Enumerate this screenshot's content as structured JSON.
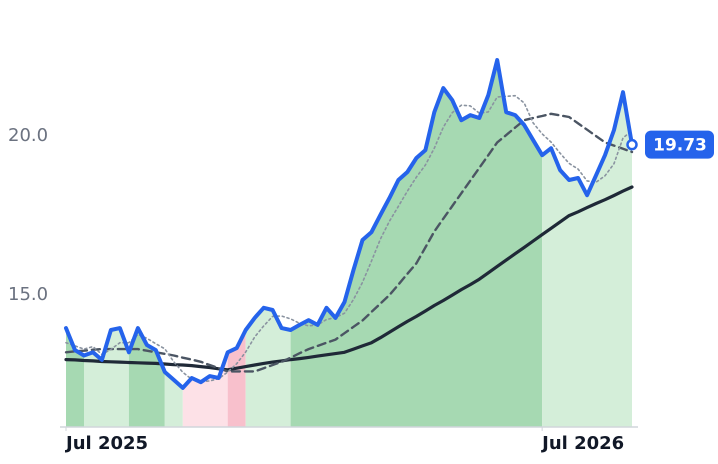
{
  "chart_data": {
    "type": "line",
    "categories": [
      "Jul 2025",
      null,
      null,
      null,
      null,
      null,
      null,
      null,
      null,
      null,
      null,
      null,
      null,
      null,
      null,
      null,
      null,
      null,
      null,
      null,
      null,
      null,
      null,
      null,
      null,
      null,
      null,
      null,
      null,
      null,
      null,
      null,
      null,
      null,
      null,
      null,
      null,
      null,
      null,
      null,
      null,
      null,
      null,
      null,
      null,
      null,
      null,
      null,
      null,
      null,
      null,
      null,
      null,
      "Jul 2026",
      null,
      null,
      null,
      null,
      null,
      null,
      null,
      null,
      null,
      null
    ],
    "ylim": [
      10.85,
      24.28
    ],
    "yticks": [
      {
        "value": 15,
        "label": "15.0"
      },
      {
        "value": 20,
        "label": "20.0"
      }
    ],
    "grid": false,
    "series": [
      {
        "color": "#2563eb",
        "style": "solid",
        "values": [
          13.96,
          13.27,
          13.1,
          13.2,
          12.96,
          13.9,
          13.96,
          13.2,
          13.96,
          13.43,
          13.27,
          12.58,
          12.33,
          12.08,
          12.39,
          12.26,
          12.45,
          12.39,
          13.2,
          13.33,
          13.9,
          14.28,
          14.6,
          14.53,
          13.96,
          13.9,
          14.06,
          14.21,
          14.06,
          14.6,
          14.28,
          14.78,
          15.79,
          16.73,
          16.98,
          17.52,
          18.05,
          18.62,
          18.87,
          19.31,
          19.56,
          20.75,
          21.51,
          21.13,
          20.5,
          20.66,
          20.57,
          21.29,
          22.39,
          20.75,
          20.66,
          20.35,
          19.87,
          19.4,
          19.62,
          18.93,
          18.62,
          18.68,
          18.14,
          18.77,
          19.4,
          20.19,
          21.38,
          19.73
        ]
      },
      {
        "color": "#8a93a0",
        "style": "dotted",
        "values": [
          13.5,
          13.4,
          13.3,
          13.38,
          13.13,
          13.29,
          13.5,
          13.5,
          13.76,
          13.64,
          13.47,
          13.31,
          12.9,
          12.57,
          12.35,
          12.27,
          12.3,
          12.37,
          12.58,
          12.84,
          13.21,
          13.68,
          14.03,
          14.33,
          14.34,
          14.25,
          14.11,
          14.03,
          14.06,
          14.23,
          14.29,
          14.43,
          14.86,
          15.4,
          16.07,
          16.76,
          17.32,
          17.79,
          18.27,
          18.71,
          19.09,
          19.62,
          20.28,
          20.74,
          20.97,
          20.95,
          20.72,
          20.76,
          21.23,
          21.25,
          21.27,
          21.04,
          20.41,
          20.07,
          19.81,
          19.46,
          19.14,
          18.96,
          18.59,
          18.55,
          18.75,
          19.13,
          19.94,
          20.18
        ]
      },
      {
        "color": "#4b5563",
        "style": "dashed",
        "values": [
          13.2,
          13.23,
          13.25,
          13.28,
          13.3,
          13.3,
          13.3,
          13.3,
          13.3,
          13.25,
          13.2,
          13.15,
          13.1,
          13.03,
          12.97,
          12.9,
          12.8,
          12.7,
          12.6,
          12.6,
          12.6,
          12.6,
          12.7,
          12.8,
          12.9,
          13.03,
          13.17,
          13.3,
          13.4,
          13.5,
          13.6,
          13.8,
          14.0,
          14.2,
          14.47,
          14.73,
          15.0,
          15.33,
          15.67,
          16.0,
          16.5,
          17.0,
          17.4,
          17.8,
          18.2,
          18.6,
          19.0,
          19.4,
          19.8,
          20.03,
          20.27,
          20.5,
          20.57,
          20.63,
          20.7,
          20.65,
          20.6,
          20.4,
          20.2,
          20.0,
          19.8,
          19.7,
          19.6,
          19.5
        ]
      },
      {
        "color": "#1f2937",
        "style": "solid",
        "values": [
          12.97,
          12.96,
          12.94,
          12.93,
          12.91,
          12.9,
          12.89,
          12.88,
          12.87,
          12.86,
          12.85,
          12.83,
          12.81,
          12.8,
          12.78,
          12.75,
          12.72,
          12.68,
          12.65,
          12.7,
          12.75,
          12.8,
          12.85,
          12.89,
          12.93,
          12.97,
          13.0,
          13.04,
          13.08,
          13.12,
          13.16,
          13.2,
          13.3,
          13.4,
          13.5,
          13.66,
          13.83,
          14.0,
          14.17,
          14.33,
          14.5,
          14.67,
          14.83,
          15.0,
          15.17,
          15.33,
          15.5,
          15.7,
          15.9,
          16.1,
          16.3,
          16.5,
          16.7,
          16.9,
          17.1,
          17.3,
          17.5,
          17.62,
          17.75,
          17.88,
          18.0,
          18.13,
          18.27,
          18.4
        ]
      }
    ],
    "zones": [
      {
        "from": 0,
        "to": 2,
        "color": "#a6d9b2"
      },
      {
        "from": 2,
        "to": 7,
        "color": "#d4eed9"
      },
      {
        "from": 7,
        "to": 11,
        "color": "#a6d9b2"
      },
      {
        "from": 11,
        "to": 13,
        "color": "#d4eed9"
      },
      {
        "from": 13,
        "to": 18,
        "color": "#fde1e7"
      },
      {
        "from": 18,
        "to": 20,
        "color": "#f8c0cc"
      },
      {
        "from": 20,
        "to": 25,
        "color": "#d4eed9"
      },
      {
        "from": 25,
        "to": 53,
        "color": "#a6d9b2"
      },
      {
        "from": 53,
        "to": 63,
        "color": "#d4eed9"
      }
    ]
  }
}
